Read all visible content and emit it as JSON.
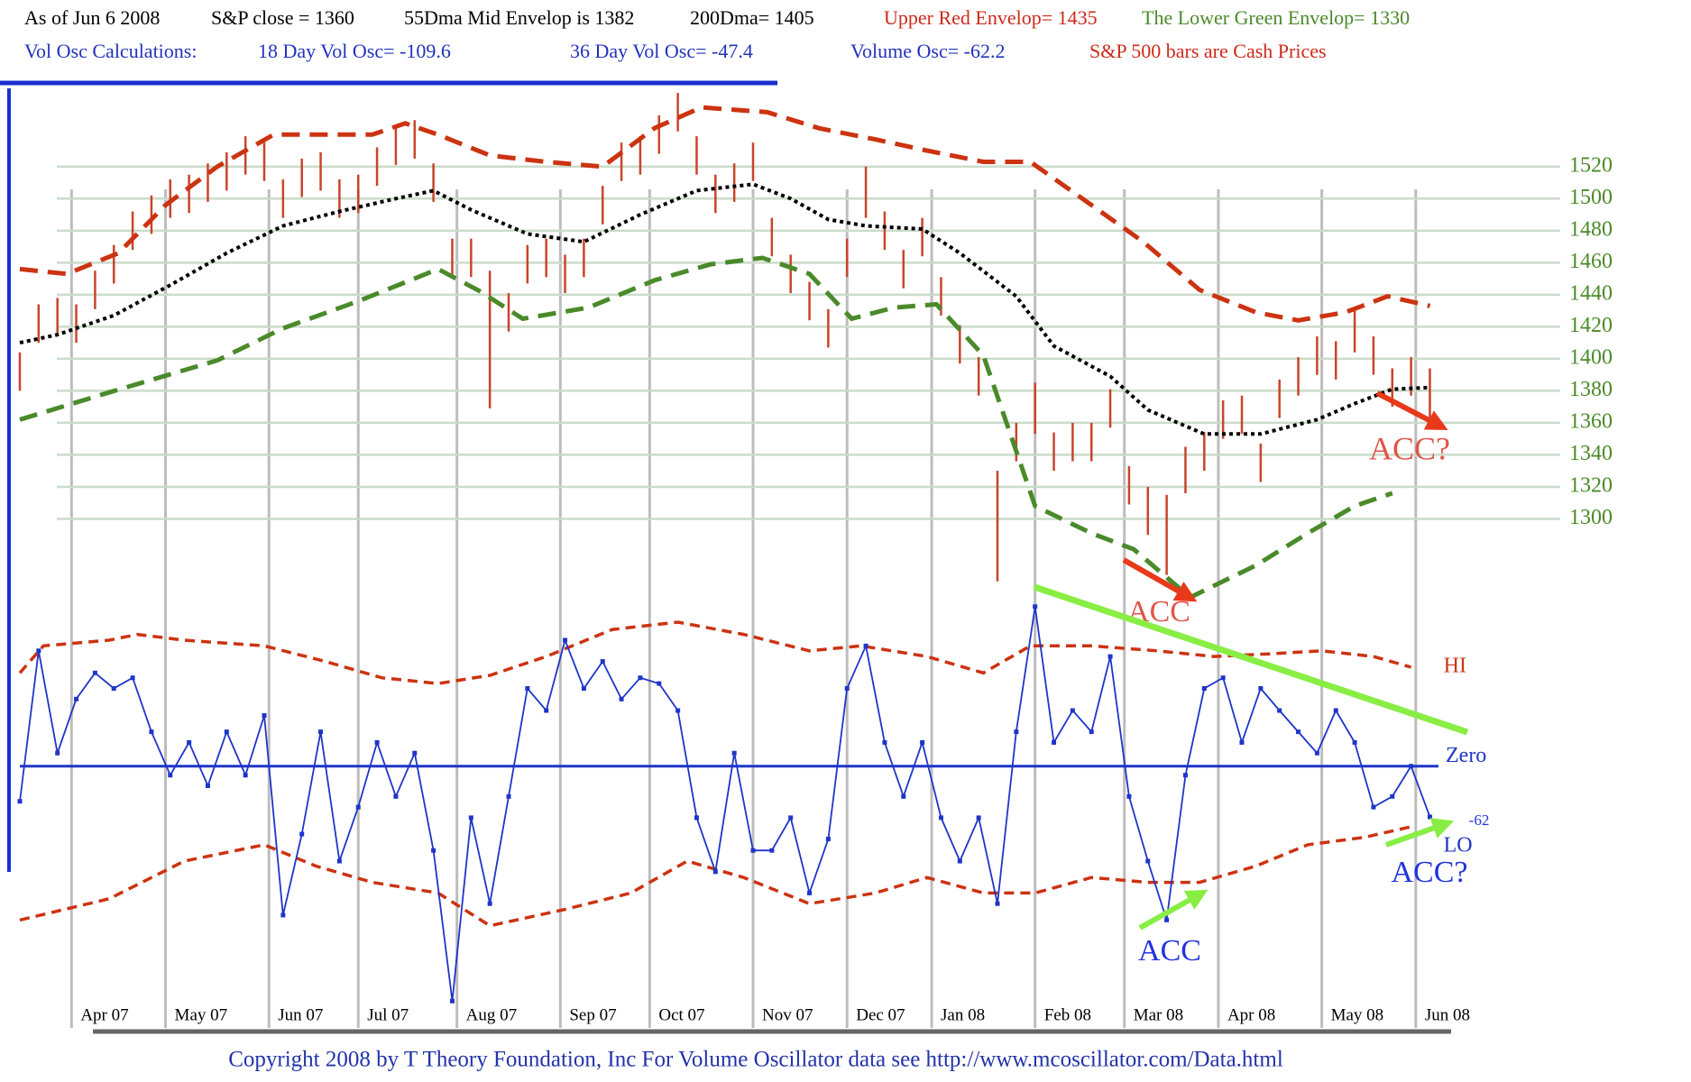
{
  "header": {
    "items": [
      [
        {
          "text": "As of Jun 6 2008",
          "color": "#000000"
        },
        {
          "text": "S&P close = 1360",
          "color": "#000000"
        },
        {
          "text": "55Dma Mid Envelop is 1382",
          "color": "#000000"
        },
        {
          "text": "200Dma= 1405",
          "color": "#000000"
        },
        {
          "text": "Upper Red Envelop= 1435",
          "color": "#cc2a1a"
        },
        {
          "text": "The Lower Green Envelop= 1330",
          "color": "#4a8a2a"
        }
      ],
      [
        {
          "text": "Vol Osc Calculations:",
          "color": "#2233bb"
        },
        {
          "text": "18 Day Vol Osc= -109.6",
          "color": "#2233bb"
        },
        {
          "text": "36 Day Vol Osc= -47.4",
          "color": "#2233bb"
        },
        {
          "text": "Volume Osc= -62.2",
          "color": "#2233bb"
        },
        {
          "text": "S&P 500 bars are Cash Prices",
          "color": "#cc2a1a"
        }
      ]
    ]
  },
  "chart_data": [
    {
      "type": "hilo",
      "color": "#c8452b",
      "x": [
        0,
        4,
        8,
        12,
        16,
        20,
        24,
        28,
        32,
        36,
        40,
        44,
        48,
        52,
        56,
        60,
        64,
        68,
        72,
        76,
        80,
        84,
        88,
        92,
        96,
        100,
        104,
        108,
        112,
        116,
        120,
        124,
        128,
        132,
        136,
        140,
        144,
        148,
        152,
        156,
        160,
        164,
        168,
        172,
        176,
        180,
        184,
        188,
        192,
        196,
        200,
        204,
        208,
        212,
        216,
        220,
        224,
        228,
        232,
        236,
        240,
        244,
        248,
        252,
        256,
        260,
        264,
        268,
        272,
        276,
        280,
        284,
        288,
        292,
        296,
        300
      ],
      "high": [
        1404,
        1434,
        1438,
        1434,
        1455,
        1471,
        1492,
        1502,
        1512,
        1515,
        1522,
        1529,
        1539,
        1535,
        1512,
        1525,
        1529,
        1512,
        1515,
        1532,
        1545,
        1549,
        1522,
        1475,
        1475,
        1455,
        1441,
        1471,
        1475,
        1465,
        1475,
        1508,
        1535,
        1539,
        1552,
        1566,
        1539,
        1515,
        1522,
        1535,
        1488,
        1465,
        1448,
        1431,
        1475,
        1520,
        1492,
        1468,
        1488,
        1451,
        1421,
        1401,
        1330,
        1360,
        1385,
        1354,
        1360,
        1360,
        1381,
        1333,
        1320,
        1315,
        1345,
        1354,
        1374,
        1377,
        1347,
        1387,
        1401,
        1414,
        1411,
        1430,
        1414,
        1394,
        1401,
        1394
      ],
      "low": [
        1380,
        1410,
        1414,
        1410,
        1431,
        1447,
        1468,
        1478,
        1488,
        1491,
        1498,
        1505,
        1515,
        1511,
        1488,
        1501,
        1505,
        1488,
        1491,
        1508,
        1521,
        1525,
        1498,
        1451,
        1451,
        1369,
        1417,
        1447,
        1451,
        1441,
        1451,
        1484,
        1511,
        1515,
        1528,
        1542,
        1515,
        1491,
        1498,
        1511,
        1464,
        1441,
        1424,
        1407,
        1451,
        1488,
        1468,
        1444,
        1464,
        1427,
        1397,
        1377,
        1261,
        1336,
        1353,
        1330,
        1336,
        1336,
        1357,
        1309,
        1290,
        1265,
        1316,
        1330,
        1350,
        1353,
        1323,
        1363,
        1377,
        1390,
        1387,
        1404,
        1390,
        1370,
        1377,
        1360
      ],
      "lines": [
        {
          "color": "#000000",
          "style": "dotted",
          "x": [
            0,
            8,
            20,
            32,
            44,
            56,
            68,
            80,
            88,
            96,
            108,
            120,
            132,
            144,
            156,
            164,
            172,
            180,
            192,
            200,
            212,
            220,
            232,
            240,
            252,
            264,
            276,
            284,
            292,
            300
          ],
          "values": [
            1410,
            1415,
            1427,
            1446,
            1466,
            1483,
            1492,
            1500,
            1505,
            1493,
            1478,
            1473,
            1490,
            1505,
            1509,
            1500,
            1487,
            1483,
            1481,
            1466,
            1439,
            1408,
            1389,
            1368,
            1353,
            1353,
            1362,
            1372,
            1381,
            1382
          ]
        },
        {
          "color": "#cc3311",
          "style": "dashed",
          "x": [
            0,
            10,
            21,
            31,
            42,
            54,
            65,
            75,
            82,
            89,
            100,
            112,
            124,
            135,
            145,
            159,
            170,
            182,
            193,
            205,
            215,
            228,
            239,
            251,
            263,
            272,
            282,
            291,
            300
          ],
          "values": [
            1456,
            1453,
            1466,
            1496,
            1520,
            1540,
            1540,
            1540,
            1547,
            1540,
            1527,
            1523,
            1520,
            1544,
            1557,
            1554,
            1544,
            1537,
            1530,
            1523,
            1523,
            1496,
            1473,
            1443,
            1429,
            1424,
            1429,
            1439,
            1433
          ]
        },
        {
          "color": "#4a8a2a",
          "style": "dashed",
          "x": [
            0,
            19,
            42,
            56,
            72,
            89,
            98,
            107,
            121,
            135,
            147,
            158,
            168,
            177,
            186,
            195,
            205,
            216,
            228,
            237,
            249,
            263,
            274,
            284,
            292
          ],
          "values": [
            1362,
            1379,
            1399,
            1419,
            1436,
            1456,
            1442,
            1425,
            1432,
            1449,
            1459,
            1463,
            1453,
            1425,
            1432,
            1434,
            1402,
            1308,
            1291,
            1281,
            1251,
            1271,
            1291,
            1308,
            1316
          ]
        }
      ],
      "xlim": [
        0,
        312
      ],
      "ylim": [
        1240,
        1570
      ],
      "yticks": [
        1300,
        1320,
        1340,
        1360,
        1380,
        1400,
        1420,
        1440,
        1460,
        1480,
        1500,
        1520
      ],
      "tick_color": "#4a8a2a",
      "grid": true,
      "annotations": [
        {
          "text": "ACC",
          "color": "#e0554a"
        },
        {
          "text": "ACC?",
          "color": "#e0554a"
        }
      ]
    },
    {
      "type": "line",
      "color": "#1f35c8",
      "markers": true,
      "x": [
        0,
        4,
        8,
        12,
        16,
        20,
        24,
        28,
        32,
        36,
        40,
        44,
        48,
        52,
        56,
        60,
        64,
        68,
        72,
        76,
        80,
        84,
        88,
        92,
        96,
        100,
        104,
        108,
        112,
        116,
        120,
        124,
        128,
        132,
        136,
        140,
        144,
        148,
        152,
        156,
        160,
        164,
        168,
        172,
        176,
        180,
        184,
        188,
        192,
        196,
        200,
        204,
        208,
        212,
        216,
        220,
        224,
        228,
        232,
        236,
        240,
        244,
        248,
        252,
        256,
        260,
        264,
        268,
        272,
        276,
        280,
        284,
        288,
        292,
        296,
        300
      ],
      "values": [
        -43,
        141,
        16,
        82,
        114,
        95,
        108,
        42,
        -11,
        29,
        -24,
        42,
        -11,
        62,
        -182,
        -83,
        42,
        -116,
        -50,
        29,
        -37,
        16,
        -103,
        -287,
        -63,
        -168,
        -37,
        95,
        68,
        154,
        95,
        128,
        82,
        108,
        101,
        68,
        -63,
        -129,
        16,
        -103,
        -103,
        -63,
        -155,
        -89,
        95,
        147,
        29,
        -37,
        29,
        -63,
        -116,
        -63,
        -168,
        42,
        195,
        29,
        68,
        42,
        134,
        -37,
        -116,
        -188,
        -11,
        95,
        108,
        29,
        95,
        68,
        42,
        16,
        68,
        29,
        -50,
        -37,
        0,
        -62
      ],
      "bands": [
        {
          "name": "HI",
          "color": "#cc3311",
          "x": [
            0,
            5,
            19,
            25,
            35,
            52,
            65,
            77,
            89,
            100,
            112,
            126,
            140,
            154,
            168,
            179,
            193,
            205,
            215,
            228,
            242,
            254,
            265,
            277,
            288,
            296
          ],
          "values": [
            114,
            147,
            154,
            161,
            154,
            147,
            128,
            108,
            101,
            111,
            134,
            167,
            176,
            161,
            141,
            147,
            134,
            114,
            147,
            147,
            141,
            134,
            137,
            141,
            134,
            121
          ]
        },
        {
          "name": "LO",
          "color": "#cc3311",
          "x": [
            0,
            19,
            35,
            52,
            63,
            75,
            89,
            100,
            116,
            130,
            142,
            154,
            168,
            182,
            193,
            205,
            216,
            228,
            240,
            251,
            263,
            274,
            286,
            296
          ],
          "values": [
            -188,
            -162,
            -116,
            -96,
            -122,
            -142,
            -155,
            -195,
            -175,
            -155,
            -116,
            -136,
            -168,
            -155,
            -136,
            -155,
            -155,
            -136,
            -142,
            -142,
            -122,
            -96,
            -87,
            -74
          ]
        }
      ],
      "xlim": [
        0,
        312
      ],
      "ylim": [
        -300,
        230
      ],
      "yticks": [
        {
          "value": 0,
          "label": "Zero"
        }
      ],
      "xticks": [
        {
          "value": 11,
          "label": "Apr 07"
        },
        {
          "value": 31,
          "label": "May 07"
        },
        {
          "value": 53,
          "label": "Jun 07"
        },
        {
          "value": 72,
          "label": "Jul 07"
        },
        {
          "value": 93,
          "label": "Aug 07"
        },
        {
          "value": 115,
          "label": "Sep 07"
        },
        {
          "value": 134,
          "label": "Oct 07"
        },
        {
          "value": 156,
          "label": "Nov 07"
        },
        {
          "value": 176,
          "label": "Dec 07"
        },
        {
          "value": 194,
          "label": "Jan 08"
        },
        {
          "value": 216,
          "label": "Feb 08"
        },
        {
          "value": 235,
          "label": "Mar 08"
        },
        {
          "value": 255,
          "label": "Apr 08"
        },
        {
          "value": 277,
          "label": "May 08"
        },
        {
          "value": 297,
          "label": "Jun 08"
        }
      ],
      "annotations": [
        {
          "text": "ACC",
          "color": "#2233dd"
        },
        {
          "text": "ACC?",
          "color": "#2233dd"
        },
        {
          "text": "-62",
          "color": "#2233dd"
        }
      ]
    }
  ],
  "footer": "Copyright 2008 by T Theory Foundation, Inc For Volume Oscillator data see http://www.mcoscillator.com/Data.html"
}
